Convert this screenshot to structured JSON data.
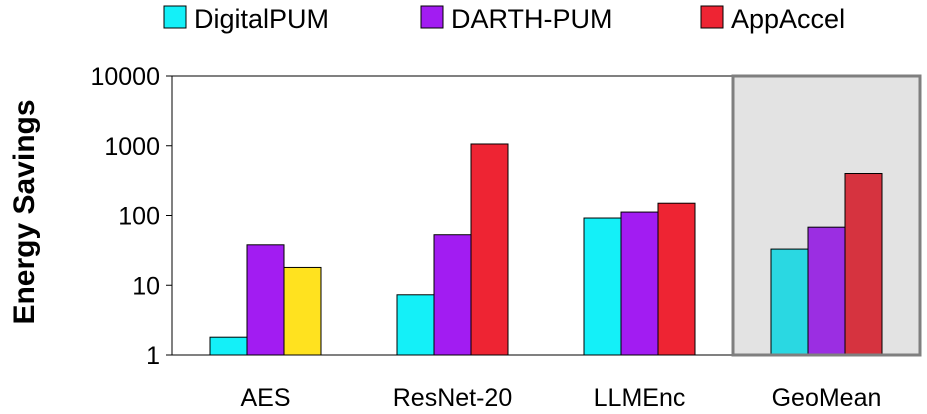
{
  "chart_data": {
    "type": "bar",
    "title": "",
    "xlabel": "",
    "ylabel": "Energy Savings",
    "yscale": "log",
    "ylim": [
      1,
      10000
    ],
    "yticks": [
      {
        "value": 1,
        "label": "1"
      },
      {
        "value": 10,
        "label": "10"
      },
      {
        "value": 100,
        "label": "100"
      },
      {
        "value": 1000,
        "label": "1000"
      },
      {
        "value": 10000,
        "label": "10000"
      }
    ],
    "grid": false,
    "legend_position": "top",
    "categories": [
      "AES",
      "ResNet-20",
      "LLMEnc",
      "GeoMean"
    ],
    "highlighted_category": "GeoMean",
    "highlight_color": "#e3e3e3",
    "series": [
      {
        "name": "DigitalPUM",
        "color": "#14f0f8",
        "values": [
          1.8,
          7.3,
          92,
          33
        ]
      },
      {
        "name": "DARTH-PUM",
        "color": "#a21cf2",
        "values": [
          38,
          53,
          112,
          68
        ]
      },
      {
        "name": "AppAccel",
        "color": "#ee2433",
        "values": [
          18,
          1060,
          150,
          400
        ]
      }
    ],
    "bar_color_overrides": [
      {
        "category": "AES",
        "series": "AppAccel",
        "color": "#ffe21f"
      },
      {
        "category": "GeoMean",
        "series": "DigitalPUM",
        "color": "#2ad8e2"
      },
      {
        "category": "GeoMean",
        "series": "DARTH-PUM",
        "color": "#9b2ee2"
      },
      {
        "category": "GeoMean",
        "series": "AppAccel",
        "color": "#d6333f"
      }
    ]
  }
}
